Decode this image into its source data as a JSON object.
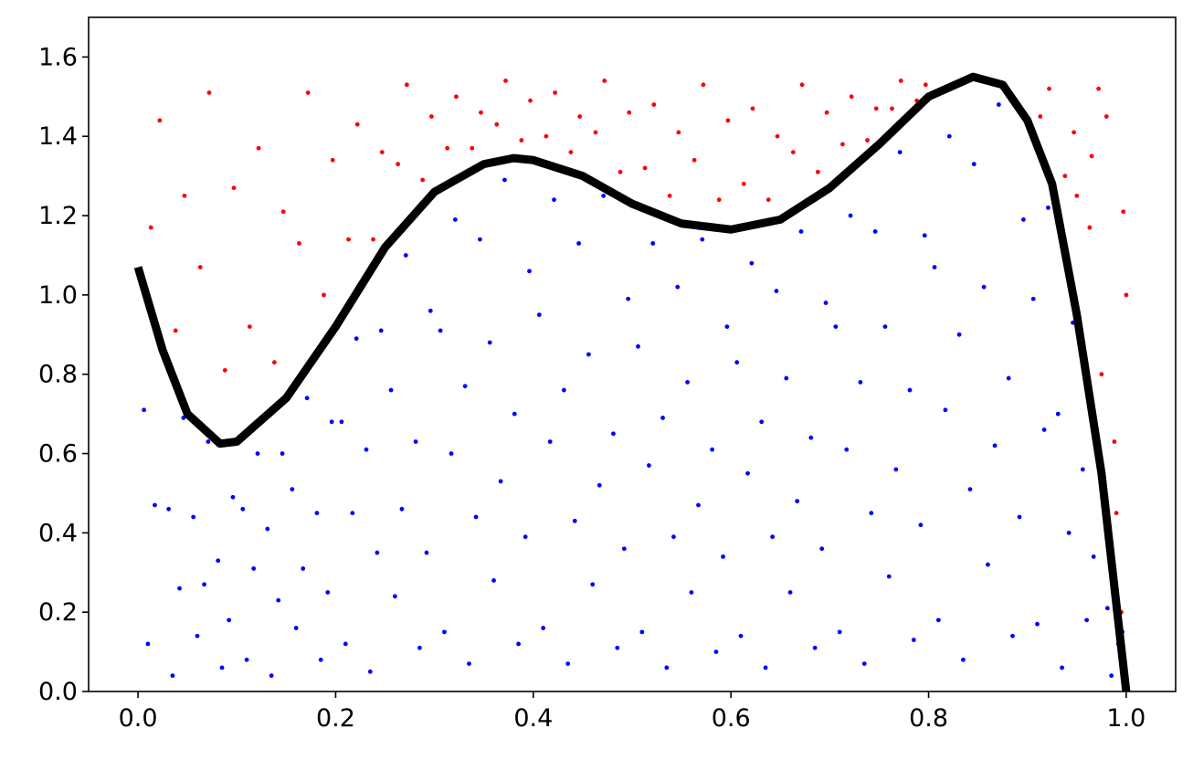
{
  "chart_data": {
    "type": "scatter",
    "xlim": [
      -0.05,
      1.05
    ],
    "ylim": [
      0,
      1.7
    ],
    "xticks": [
      {
        "value": 0,
        "label": "0.0"
      },
      0.2,
      0.4,
      0.6,
      0.8,
      {
        "value": 1,
        "label": "1.0"
      }
    ],
    "yticks": [
      {
        "value": 0,
        "label": "0.0"
      },
      0.2,
      0.4,
      0.6,
      0.8,
      {
        "value": 1,
        "label": "1.0"
      },
      1.2,
      1.4,
      1.6
    ],
    "grid": false,
    "series": [
      {
        "type": "scatter",
        "color": "#0000ff",
        "x": [
          0.01,
          0.017,
          0.006,
          0.021,
          0.035,
          0.042,
          0.031,
          0.046,
          0.06,
          0.067,
          0.056,
          0.071,
          0.085,
          0.092,
          0.081,
          0.096,
          0.11,
          0.117,
          0.106,
          0.121,
          0.135,
          0.142,
          0.131,
          0.146,
          0.16,
          0.167,
          0.156,
          0.171,
          0.185,
          0.192,
          0.181,
          0.196,
          0.21,
          0.217,
          0.206,
          0.221,
          0.235,
          0.242,
          0.231,
          0.246,
          0.26,
          0.267,
          0.256,
          0.271,
          0.285,
          0.292,
          0.281,
          0.296,
          0.31,
          0.317,
          0.306,
          0.321,
          0.335,
          0.342,
          0.331,
          0.346,
          0.36,
          0.367,
          0.356,
          0.371,
          0.385,
          0.392,
          0.381,
          0.396,
          0.41,
          0.417,
          0.406,
          0.421,
          0.435,
          0.442,
          0.431,
          0.446,
          0.46,
          0.467,
          0.456,
          0.471,
          0.485,
          0.492,
          0.481,
          0.496,
          0.51,
          0.517,
          0.506,
          0.521,
          0.535,
          0.542,
          0.531,
          0.546,
          0.56,
          0.567,
          0.556,
          0.571,
          0.585,
          0.592,
          0.581,
          0.596,
          0.61,
          0.617,
          0.606,
          0.621,
          0.635,
          0.642,
          0.631,
          0.646,
          0.66,
          0.667,
          0.656,
          0.671,
          0.685,
          0.692,
          0.681,
          0.696,
          0.71,
          0.717,
          0.706,
          0.721,
          0.735,
          0.742,
          0.731,
          0.746,
          0.76,
          0.767,
          0.756,
          0.771,
          0.785,
          0.792,
          0.781,
          0.796,
          0.81,
          0.817,
          0.806,
          0.821,
          0.835,
          0.842,
          0.831,
          0.846,
          0.86,
          0.867,
          0.856,
          0.871,
          0.885,
          0.892,
          0.881,
          0.896,
          0.91,
          0.917,
          0.906,
          0.921,
          0.935,
          0.942,
          0.931,
          0.946,
          0.96,
          0.967,
          0.956,
          0.971,
          0.985,
          0.992,
          0.981,
          0.996
        ],
        "values": [
          0.12,
          0.47,
          0.71,
          0.88,
          0.04,
          0.26,
          0.46,
          0.69,
          0.14,
          0.27,
          0.44,
          0.63,
          0.06,
          0.18,
          0.33,
          0.49,
          0.08,
          0.31,
          0.46,
          0.6,
          0.04,
          0.23,
          0.41,
          0.6,
          0.16,
          0.31,
          0.51,
          0.74,
          0.08,
          0.25,
          0.45,
          0.68,
          0.12,
          0.45,
          0.68,
          0.89,
          0.05,
          0.35,
          0.61,
          0.91,
          0.24,
          0.46,
          0.76,
          1.1,
          0.11,
          0.35,
          0.63,
          0.96,
          0.15,
          0.6,
          0.91,
          1.19,
          0.07,
          0.44,
          0.77,
          1.14,
          0.28,
          0.53,
          0.88,
          1.29,
          0.12,
          0.39,
          0.7,
          1.06,
          0.16,
          0.63,
          0.95,
          1.24,
          0.07,
          0.43,
          0.76,
          1.13,
          0.27,
          0.52,
          0.85,
          1.25,
          0.11,
          0.36,
          0.65,
          0.99,
          0.15,
          0.57,
          0.87,
          1.13,
          0.06,
          0.39,
          0.69,
          1.02,
          0.25,
          0.47,
          0.78,
          1.14,
          0.1,
          0.34,
          0.61,
          0.92,
          0.14,
          0.55,
          0.83,
          1.08,
          0.06,
          0.39,
          0.68,
          1.01,
          0.25,
          0.48,
          0.79,
          1.16,
          0.11,
          0.36,
          0.64,
          0.98,
          0.15,
          0.61,
          0.92,
          1.2,
          0.07,
          0.45,
          0.78,
          1.16,
          0.29,
          0.56,
          0.92,
          1.36,
          0.13,
          0.42,
          0.76,
          1.15,
          0.18,
          0.71,
          1.07,
          1.4,
          0.08,
          0.51,
          0.9,
          1.33,
          0.32,
          0.62,
          1.02,
          1.48,
          0.14,
          0.44,
          0.79,
          1.19,
          0.17,
          0.66,
          0.99,
          1.22,
          0.06,
          0.4,
          0.7,
          0.93,
          0.18,
          0.34,
          0.56,
          0.62,
          0.04,
          0.12,
          0.21,
          0.15
        ]
      },
      {
        "type": "scatter",
        "color": "#ff0000",
        "x": [
          0.013,
          0.022,
          0.038,
          0.047,
          0.063,
          0.072,
          0.088,
          0.097,
          0.113,
          0.122,
          0.138,
          0.147,
          0.163,
          0.172,
          0.188,
          0.197,
          0.213,
          0.222,
          0.238,
          0.247,
          0.263,
          0.272,
          0.288,
          0.297,
          0.313,
          0.322,
          0.338,
          0.347,
          0.363,
          0.372,
          0.388,
          0.397,
          0.413,
          0.422,
          0.438,
          0.447,
          0.463,
          0.472,
          0.488,
          0.497,
          0.513,
          0.522,
          0.538,
          0.547,
          0.563,
          0.572,
          0.588,
          0.597,
          0.613,
          0.622,
          0.638,
          0.647,
          0.663,
          0.672,
          0.688,
          0.697,
          0.713,
          0.722,
          0.738,
          0.747,
          0.763,
          0.772,
          0.788,
          0.797,
          0.913,
          0.922,
          0.938,
          0.947,
          0.963,
          0.972,
          0.988,
          0.997,
          0.975,
          0.99,
          1.0,
          0.965,
          0.98,
          0.95,
          0.995
        ],
        "values": [
          1.17,
          1.44,
          0.91,
          1.25,
          1.07,
          1.51,
          0.81,
          1.27,
          0.92,
          1.37,
          0.83,
          1.21,
          1.13,
          1.51,
          1.0,
          1.34,
          1.14,
          1.43,
          1.14,
          1.36,
          1.33,
          1.53,
          1.29,
          1.45,
          1.37,
          1.5,
          1.37,
          1.46,
          1.43,
          1.54,
          1.39,
          1.49,
          1.4,
          1.51,
          1.36,
          1.45,
          1.41,
          1.54,
          1.31,
          1.46,
          1.32,
          1.48,
          1.25,
          1.41,
          1.34,
          1.53,
          1.24,
          1.44,
          1.28,
          1.47,
          1.24,
          1.4,
          1.36,
          1.53,
          1.31,
          1.46,
          1.38,
          1.5,
          1.39,
          1.47,
          1.47,
          1.54,
          1.49,
          1.53,
          1.45,
          1.52,
          1.3,
          1.41,
          1.17,
          1.52,
          0.63,
          1.21,
          0.8,
          0.45,
          1.0,
          1.35,
          1.45,
          1.25,
          0.2
        ]
      },
      {
        "type": "line",
        "color": "#000000",
        "x": [
          0,
          0.025,
          0.05,
          0.083,
          0.1,
          0.15,
          0.2,
          0.25,
          0.3,
          0.35,
          0.38,
          0.4,
          0.45,
          0.5,
          0.55,
          0.6,
          0.65,
          0.7,
          0.75,
          0.8,
          0.845,
          0.875,
          0.9,
          0.925,
          0.95,
          0.975,
          1.0
        ],
        "values": [
          1.07,
          0.86,
          0.7,
          0.625,
          0.63,
          0.74,
          0.92,
          1.12,
          1.26,
          1.33,
          1.345,
          1.34,
          1.3,
          1.23,
          1.18,
          1.165,
          1.19,
          1.27,
          1.38,
          1.5,
          1.55,
          1.53,
          1.44,
          1.28,
          0.95,
          0.55,
          0
        ]
      }
    ]
  }
}
